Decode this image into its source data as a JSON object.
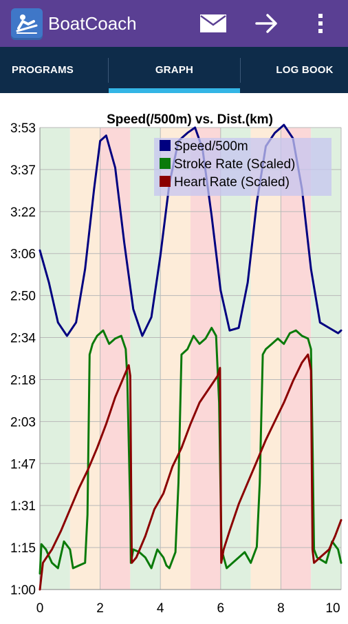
{
  "app": {
    "title": "BoatCoach"
  },
  "actions": [
    {
      "icon": "mail-icon",
      "label": "Messages"
    },
    {
      "icon": "arrow-right-icon",
      "label": "Forward"
    },
    {
      "icon": "overflow-menu-icon",
      "label": "More options"
    }
  ],
  "tabs": [
    {
      "label": "PROGRAMS",
      "selected": false
    },
    {
      "label": "GRAPH",
      "selected": true
    },
    {
      "label": "LOG BOOK",
      "selected": false
    }
  ],
  "colors": {
    "appbar": "#5a3f93",
    "tabbar": "#0e2c4a",
    "tab_indicator": "#33b5e5",
    "speed": "#000080",
    "stroke": "#0a7a0a",
    "heart": "#8b0000"
  },
  "chart_data": {
    "type": "line",
    "title": "Speed(/500m) vs. Dist.(km)",
    "xlabel": "",
    "ylabel": "",
    "xlim": [
      0,
      10
    ],
    "ylim_seconds": [
      60,
      233
    ],
    "x_ticks": [
      "0",
      "2",
      "4",
      "6",
      "8",
      "10"
    ],
    "y_ticks": [
      "3:53",
      "3:37",
      "3:22",
      "3:06",
      "2:50",
      "2:34",
      "2:18",
      "2:03",
      "1:47",
      "1:31",
      "1:15",
      "1:00"
    ],
    "grid": true,
    "legend_position": "top-right",
    "background_bands": [
      {
        "from": 0,
        "to": 1,
        "zone": "green"
      },
      {
        "from": 1,
        "to": 2,
        "zone": "orange"
      },
      {
        "from": 2,
        "to": 3,
        "zone": "red"
      },
      {
        "from": 3,
        "to": 4,
        "zone": "green"
      },
      {
        "from": 4,
        "to": 5,
        "zone": "orange"
      },
      {
        "from": 5,
        "to": 6,
        "zone": "red"
      },
      {
        "from": 6,
        "to": 7,
        "zone": "green"
      },
      {
        "from": 7,
        "to": 8,
        "zone": "orange"
      },
      {
        "from": 8,
        "to": 9,
        "zone": "red"
      },
      {
        "from": 9,
        "to": 10,
        "zone": "green"
      }
    ],
    "band_colors": {
      "green": "#dff0df",
      "orange": "#fdecd9",
      "red": "#fbd8d8"
    },
    "series": [
      {
        "name": "Speed/500m",
        "color": "#000080",
        "x": [
          0,
          0.3,
          0.6,
          0.9,
          1.2,
          1.5,
          1.8,
          2.0,
          2.2,
          2.5,
          2.8,
          3.1,
          3.4,
          3.7,
          4.0,
          4.3,
          4.6,
          4.9,
          5.15,
          5.4,
          5.7,
          6.0,
          6.3,
          6.6,
          6.9,
          7.2,
          7.5,
          7.8,
          8.1,
          8.4,
          8.7,
          9.0,
          9.3,
          9.6,
          9.9,
          10
        ],
        "y": [
          187,
          175,
          160,
          155,
          160,
          180,
          210,
          228,
          230,
          218,
          190,
          165,
          155,
          162,
          185,
          212,
          228,
          231,
          233,
          225,
          200,
          172,
          157,
          158,
          175,
          205,
          226,
          231,
          234,
          229,
          210,
          180,
          160,
          158,
          156,
          157
        ]
      },
      {
        "name": "Stroke Rate (Scaled)",
        "color": "#0a7a0a",
        "x": [
          0,
          0.05,
          0.2,
          0.4,
          0.6,
          0.8,
          1.0,
          1.1,
          1.3,
          1.5,
          1.58,
          1.65,
          1.7,
          1.75,
          1.9,
          2.1,
          2.3,
          2.5,
          2.7,
          2.85,
          2.9,
          3.0,
          3.02,
          3.1,
          3.3,
          3.5,
          3.7,
          3.9,
          4.1,
          4.2,
          4.3,
          4.5,
          4.6,
          4.7,
          4.9,
          5.1,
          5.3,
          5.5,
          5.7,
          5.85,
          5.95,
          6.03,
          6.2,
          6.4,
          6.6,
          6.8,
          7.0,
          7.2,
          7.3,
          7.4,
          7.5,
          7.7,
          7.9,
          8.1,
          8.3,
          8.5,
          8.7,
          8.9,
          9.0,
          9.05,
          9.1,
          9.2,
          9.5,
          9.7,
          9.9,
          10
        ],
        "y": [
          66,
          77,
          75,
          70,
          68,
          78,
          75,
          68,
          69,
          70,
          88,
          148,
          150,
          152,
          155,
          157,
          152,
          154,
          155,
          150,
          140,
          90,
          70,
          75,
          74,
          72,
          68,
          75,
          72,
          69,
          68,
          74,
          100,
          148,
          150,
          155,
          152,
          154,
          158,
          155,
          130,
          75,
          68,
          70,
          72,
          74,
          70,
          76,
          100,
          148,
          150,
          152,
          154,
          152,
          156,
          157,
          155,
          154,
          150,
          115,
          75,
          72,
          70,
          78,
          75,
          70
        ]
      },
      {
        "name": "Heart Rate (Scaled)",
        "color": "#8b0000",
        "x": [
          0,
          0.1,
          0.4,
          0.7,
          1.0,
          1.3,
          1.6,
          1.9,
          2.2,
          2.5,
          2.8,
          2.95,
          3.0,
          3.05,
          3.2,
          3.5,
          3.8,
          4.1,
          4.4,
          4.7,
          5.0,
          5.3,
          5.6,
          5.9,
          5.98,
          6.02,
          6.1,
          6.3,
          6.6,
          6.9,
          7.2,
          7.5,
          7.8,
          8.1,
          8.4,
          8.7,
          8.9,
          9.0,
          9.05,
          9.1,
          9.3,
          9.6,
          9.8,
          10
        ],
        "y": [
          60,
          70,
          75,
          82,
          90,
          98,
          105,
          113,
          122,
          132,
          140,
          144,
          140,
          70,
          72,
          80,
          90,
          96,
          106,
          113,
          122,
          130,
          135,
          140,
          143,
          70,
          75,
          82,
          92,
          100,
          108,
          116,
          123,
          130,
          138,
          145,
          148,
          142,
          75,
          70,
          72,
          75,
          80,
          86
        ]
      }
    ]
  }
}
